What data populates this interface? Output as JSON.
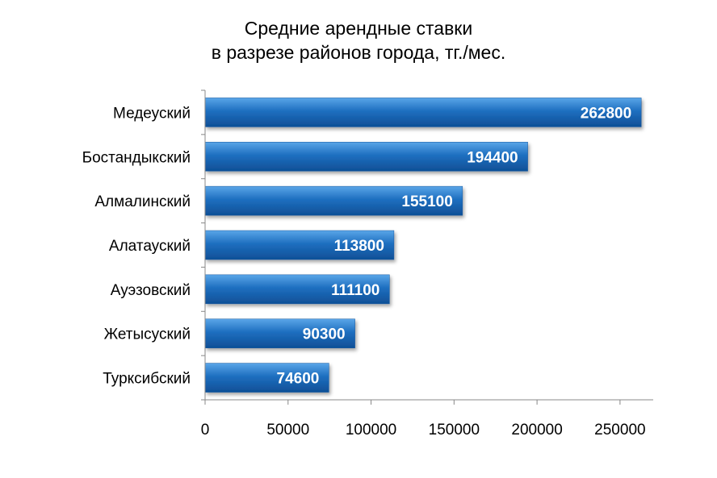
{
  "chart_data": {
    "type": "bar",
    "orientation": "horizontal",
    "title": [
      "Средние арендные ставки",
      "в разрезе районов города, тг./мес."
    ],
    "categories": [
      "Медеуский",
      "Бостандыкский",
      "Алмалинский",
      "Алатауский",
      "Ауэзовский",
      "Жетысуский",
      "Турксибский"
    ],
    "values": [
      262800,
      194400,
      155100,
      113800,
      111100,
      90300,
      74600
    ],
    "xlim": [
      0,
      270000
    ],
    "xticks": [
      0,
      50000,
      100000,
      150000,
      200000,
      250000
    ],
    "data_labels": true,
    "grid": false,
    "legend": "none",
    "bar_color": "#1e6fc0"
  }
}
